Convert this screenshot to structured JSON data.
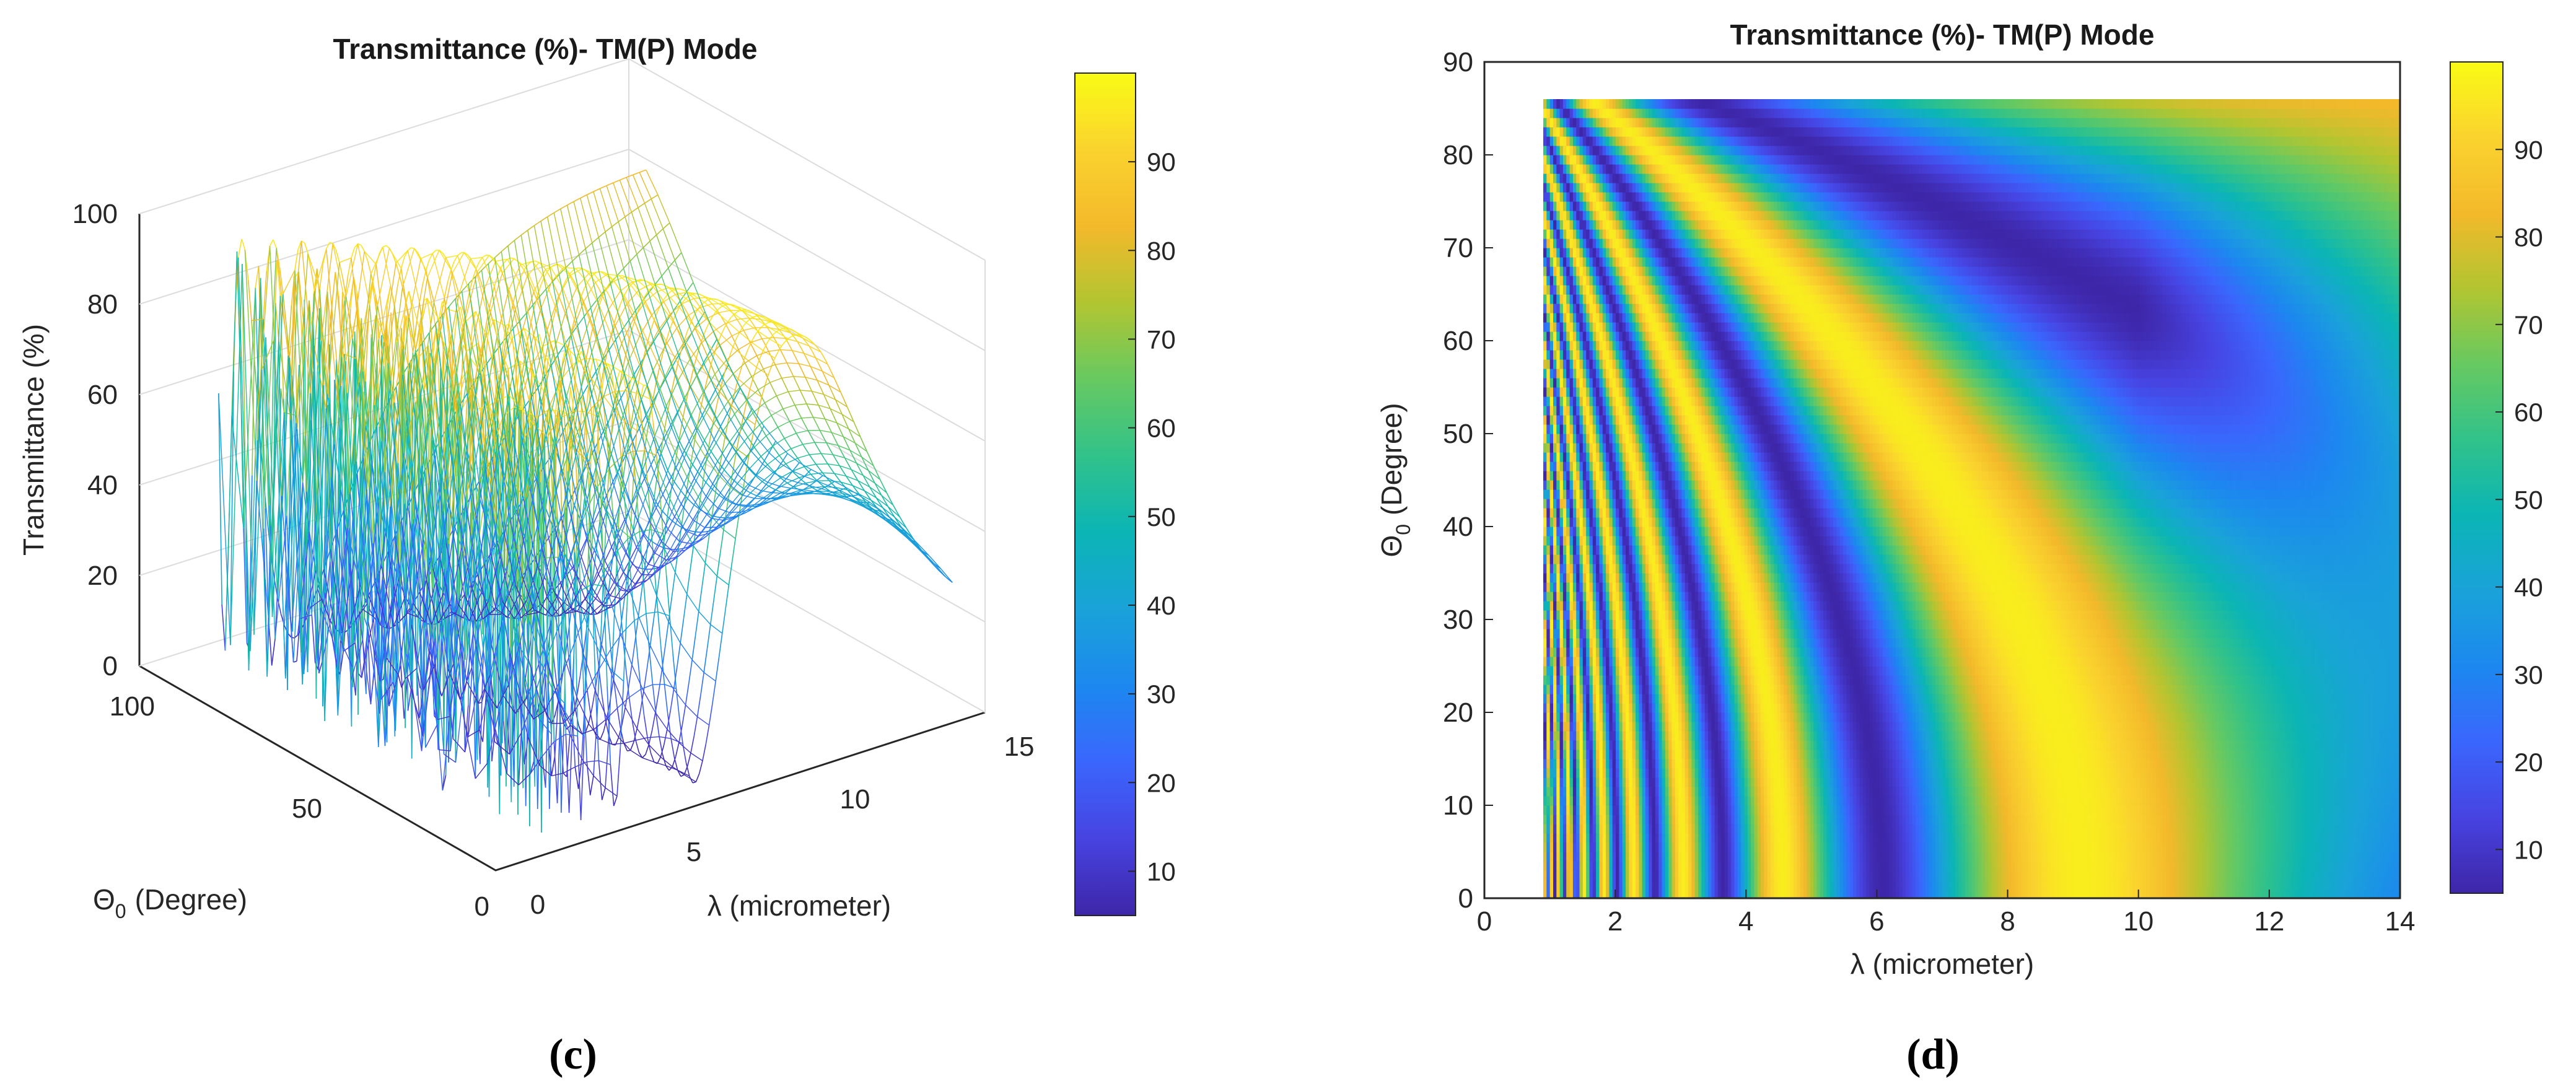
{
  "colors": {
    "parula": [
      "#3e26a8",
      "#4743e1",
      "#3a66fd",
      "#1c88ef",
      "#1aa2d9",
      "#0bb5b5",
      "#31c28a",
      "#67c961",
      "#b2c531",
      "#f3b92b",
      "#fad32e",
      "#f9fb15"
    ],
    "axis": "#262626",
    "grid": "#dcdcdc"
  },
  "chart_data": [
    {
      "panel_label": "(c)",
      "type": "surface3d",
      "title": "Transmittance (%)- TM(P) Mode",
      "zlabel": "Transmittance (%)",
      "ylabel_main": "Θ",
      "ylabel_sub": "0",
      "ylabel_rest": "(Degree)",
      "xlabel": "λ (micrometer)",
      "xlim": [
        0,
        15
      ],
      "ylim": [
        0,
        100
      ],
      "zlim": [
        0,
        100
      ],
      "xticks": [
        "0",
        "5",
        "10",
        "15"
      ],
      "yticks": [
        "0",
        "50",
        "100"
      ],
      "zticks": [
        "0",
        "20",
        "40",
        "60",
        "80",
        "100"
      ],
      "colorbar": {
        "range": [
          5,
          100
        ],
        "ticks": [
          "10",
          "20",
          "30",
          "40",
          "50",
          "60",
          "70",
          "80",
          "90"
        ]
      }
    },
    {
      "panel_label": "(d)",
      "type": "heatmap",
      "title": "Transmittance (%)- TM(P) Mode",
      "xlabel": "λ (micrometer)",
      "ylabel_main": "Θ",
      "ylabel_sub": "0",
      "ylabel_rest": "(Degree)",
      "xlim": [
        0,
        14
      ],
      "ylim": [
        0,
        90
      ],
      "data_xrange": [
        0.9,
        14
      ],
      "data_yrange": [
        0,
        86
      ],
      "xticks": [
        "0",
        "2",
        "4",
        "6",
        "8",
        "10",
        "12",
        "14"
      ],
      "yticks": [
        "0",
        "10",
        "20",
        "30",
        "40",
        "50",
        "60",
        "70",
        "80",
        "90"
      ],
      "colorbar": {
        "range": [
          5,
          100
        ],
        "ticks": [
          "10",
          "20",
          "30",
          "40",
          "50",
          "60",
          "70",
          "80",
          "90"
        ]
      }
    }
  ]
}
